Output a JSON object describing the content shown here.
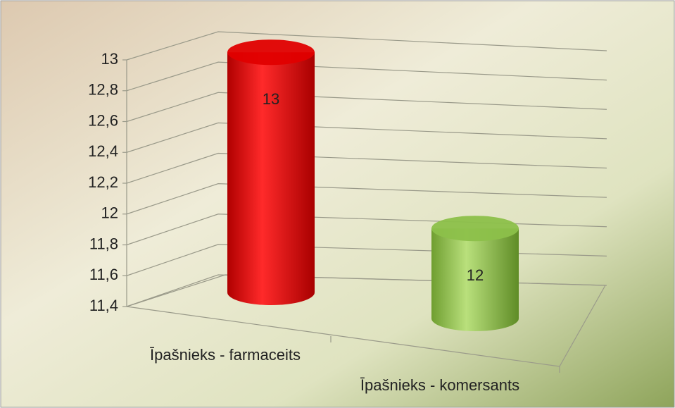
{
  "chart_data": {
    "type": "bar3d",
    "categories": [
      "Īpašnieks - farmaceits",
      "Īpašnieks - komersants"
    ],
    "series": [
      {
        "name": null,
        "colors": [
          "#e00000",
          "#8cc04a"
        ],
        "values": [
          13,
          12
        ]
      }
    ],
    "ylim": [
      11.4,
      13
    ],
    "yticks": [
      {
        "value": 11.4,
        "label": "11,4"
      },
      {
        "value": 11.6,
        "label": "11,6"
      },
      {
        "value": 11.8,
        "label": "11,8"
      },
      12,
      {
        "value": 12.2,
        "label": "12,2"
      },
      {
        "value": 12.4,
        "label": "12,4"
      },
      {
        "value": 12.6,
        "label": "12,6"
      },
      {
        "value": 12.8,
        "label": "12,8"
      },
      13
    ],
    "grid": true
  }
}
